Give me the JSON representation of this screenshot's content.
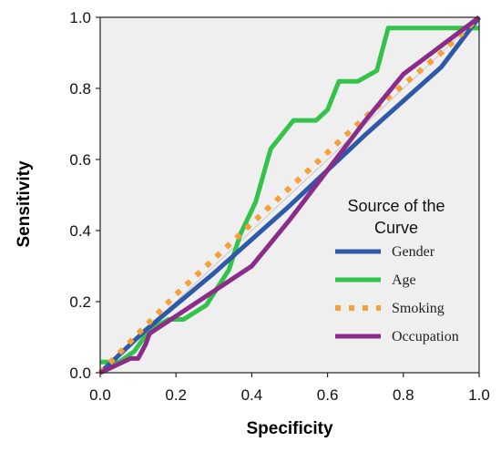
{
  "chart_data": {
    "type": "line",
    "title": "",
    "xlabel": "Specificity",
    "ylabel": "Sensitivity",
    "xlim": [
      0,
      1
    ],
    "ylim": [
      0,
      1
    ],
    "xticks": [
      "0.0",
      "0.2",
      "0.4",
      "0.6",
      "0.8",
      "1.0"
    ],
    "yticks": [
      "0.0",
      "0.2",
      "0.4",
      "0.6",
      "0.8",
      "1.0"
    ],
    "grid": false,
    "background": "#efefef",
    "legend": {
      "title": "Source of the Curve",
      "title_lines": [
        "Source of the",
        "Curve"
      ],
      "position": "right"
    },
    "series": [
      {
        "name": "Gender",
        "color": "#2e58a8",
        "style": "solid",
        "x": [
          0.0,
          0.12,
          0.3,
          0.5,
          0.7,
          0.9,
          1.0
        ],
        "y": [
          0.0,
          0.12,
          0.28,
          0.47,
          0.67,
          0.86,
          1.0
        ]
      },
      {
        "name": "Age",
        "color": "#33c24a",
        "style": "solid",
        "x": [
          0.0,
          0.05,
          0.09,
          0.13,
          0.18,
          0.22,
          0.28,
          0.34,
          0.37,
          0.41,
          0.45,
          0.51,
          0.57,
          0.6,
          0.63,
          0.68,
          0.73,
          0.76,
          1.0
        ],
        "y": [
          0.03,
          0.03,
          0.06,
          0.12,
          0.15,
          0.15,
          0.19,
          0.29,
          0.39,
          0.48,
          0.63,
          0.71,
          0.71,
          0.74,
          0.82,
          0.82,
          0.85,
          0.97,
          0.97
        ]
      },
      {
        "name": "Smoking",
        "color": "#f5a03a",
        "style": "dotted",
        "x": [
          0.0,
          0.1,
          0.2,
          0.3,
          0.4,
          0.5,
          0.6,
          0.7,
          0.8,
          0.9,
          1.0
        ],
        "y": [
          0.0,
          0.11,
          0.22,
          0.32,
          0.42,
          0.52,
          0.62,
          0.72,
          0.81,
          0.9,
          1.0
        ]
      },
      {
        "name": "Occupation",
        "color": "#8b2c8a",
        "style": "solid",
        "x": [
          0.0,
          0.08,
          0.1,
          0.12,
          0.13,
          0.4,
          0.5,
          0.6,
          0.7,
          0.8,
          0.9,
          1.0
        ],
        "y": [
          0.0,
          0.04,
          0.04,
          0.08,
          0.11,
          0.3,
          0.43,
          0.57,
          0.71,
          0.84,
          0.92,
          1.0
        ]
      }
    ]
  }
}
